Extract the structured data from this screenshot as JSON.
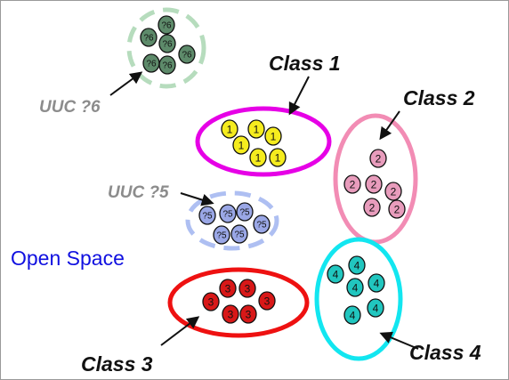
{
  "colors": {
    "background": "#ffffff",
    "frame": "#9a9a9a",
    "class1": "#e600e6",
    "class1_point": "#f5ec1e",
    "class2": "#f28cb4",
    "class2_point": "#e89cbc",
    "class3": "#ee1111",
    "class3_point": "#d81818",
    "class4": "#12e6f0",
    "class4_point": "#21c6bf",
    "uuc5": "#aebff2",
    "uuc5_point": "#9aa7e6",
    "uuc6": "#b6dcbd",
    "uuc6_point": "#5d8a6a",
    "label_dark": "#111111",
    "label_gray": "#8c8c8c",
    "open_space": "#1010e0"
  },
  "labels": {
    "class1": "Class 1",
    "class2": "Class 2",
    "class3": "Class 3",
    "class4": "Class 4",
    "uuc5": "UUC ?5",
    "uuc6": "UUC ?6",
    "open_space": "Open Space"
  },
  "point_labels": {
    "class1": "1",
    "class2": "2",
    "class3": "3",
    "class4": "4",
    "uuc5": "?5",
    "uuc6": "?6"
  },
  "groups": [
    {
      "id": "class1",
      "label_key": "class1",
      "point_count": 6,
      "boundary": "solid"
    },
    {
      "id": "class2",
      "label_key": "class2",
      "point_count": 6,
      "boundary": "solid"
    },
    {
      "id": "class3",
      "label_key": "class3",
      "point_count": 6,
      "boundary": "solid"
    },
    {
      "id": "class4",
      "label_key": "class4",
      "point_count": 6,
      "boundary": "solid"
    },
    {
      "id": "uuc5",
      "label_key": "uuc5",
      "point_count": 6,
      "boundary": "dashed"
    },
    {
      "id": "uuc6",
      "label_key": "uuc6",
      "point_count": 6,
      "boundary": "dashed"
    }
  ]
}
